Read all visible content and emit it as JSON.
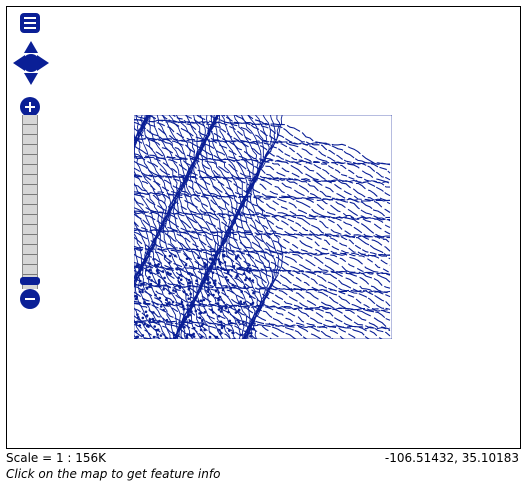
{
  "map": {
    "scale_label": "Scale = 1 : 156K",
    "coordinates": "-106.51432, 35.10183",
    "hint": "Click on the map to get feature info",
    "feature_color": "#0a1f96",
    "tile_layer": "contour lines"
  },
  "controls": {
    "layer_switcher_icon": "layers-icon",
    "pan_icon": "pan-arrows-icon",
    "zoom_in_icon": "plus-icon",
    "zoom_out_icon": "minus-icon",
    "zoom_level_fraction": 0.1,
    "control_color": "#0a1f96"
  }
}
